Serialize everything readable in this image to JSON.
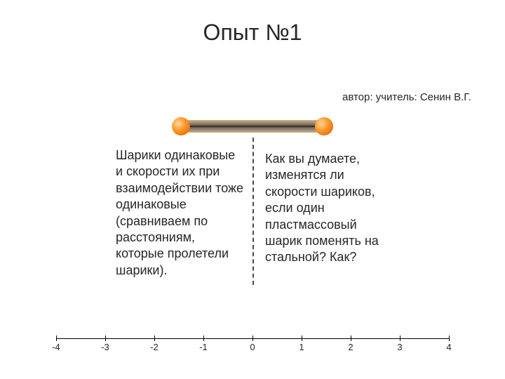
{
  "title": "Опыт №1",
  "author": "автор: учитель: Сенин В.Г.",
  "left_text": "Шарики одинаковые и скорости их при взаимодействии тоже одинаковые (сравниваем по расстояниям, которые пролетели шарики).",
  "right_text": "Как вы думаете, изменятся ли скорости шариков, если один пластмассовый шарик поменять на стальной? Как?",
  "axis": {
    "min": -4,
    "max": 4,
    "step": 1,
    "labels": [
      "-4",
      "-3",
      "-2",
      "-1",
      "0",
      "1",
      "2",
      "3",
      "4"
    ]
  },
  "diagram": {
    "ball_color": "#ff9a2e",
    "rod_fill_dark": "#2e2216",
    "rod_fill_light": "#b2a99e",
    "rod_border": "#e28b26"
  },
  "colors": {
    "background": "#ffffff",
    "text": "#262626",
    "divider": "#4a4a4a",
    "axis": "#000000"
  },
  "fonts": {
    "title_size": 32,
    "body_size": 18,
    "author_size": 15,
    "tick_size": 13
  }
}
